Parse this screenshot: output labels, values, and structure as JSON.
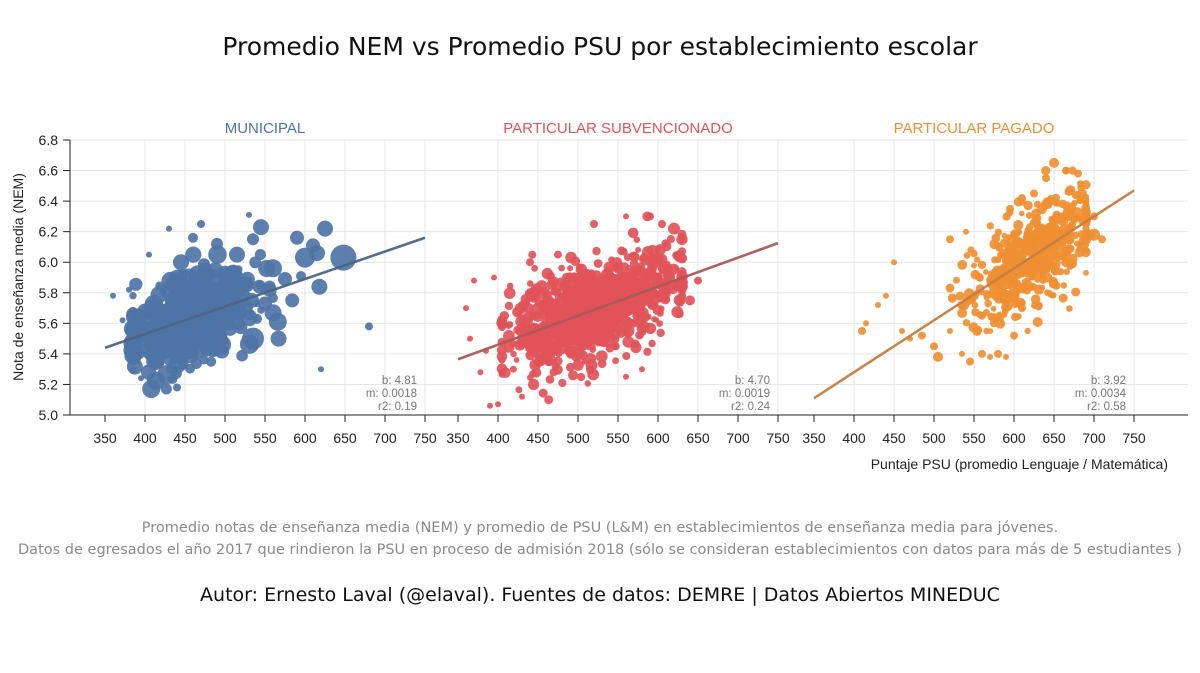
{
  "title": "Promedio NEM vs Promedio PSU por establecimiento escolar",
  "caption_line1": "Promedio notas de enseñanza media (NEM) y promedio de PSU (L&M) en establecimientos de enseñanza media para jóvenes.",
  "caption_line2": "Datos de egresados el año 2017 que rindieron la PSU en proceso de admisión 2018 (sólo se consideran establecimientos con datos para más de 5 estudiantes )",
  "author": "Autor: Ernesto Laval (@elaval).  Fuentes de datos: DEMRE | Datos Abiertos MINEDUC",
  "chart_data": {
    "type": "scatter",
    "ylabel": "Nota de enseñanza media (NEM)",
    "xlabel": "Puntaje PSU (promedio Lenguaje / Matemática)",
    "xlim": [
      350,
      750
    ],
    "ylim": [
      5.0,
      6.8
    ],
    "xticks": [
      "350",
      "400",
      "450",
      "500",
      "550",
      "600",
      "650",
      "700",
      "750"
    ],
    "yticks": [
      "5.0",
      "5.2",
      "5.4",
      "5.6",
      "5.8",
      "6.0",
      "6.2",
      "6.4",
      "6.6",
      "6.8"
    ],
    "grid": true,
    "panels": [
      {
        "name": "MUNICIPAL",
        "color": "#4e74a6",
        "line_color": "#4a6585",
        "stats": [
          "b: 4.81",
          "m: 0.0018",
          "r2: 0.19"
        ],
        "regression": {
          "b": 4.81,
          "m": 0.0018
        },
        "cloud": {
          "center": [
            450,
            5.66
          ],
          "spread": [
            40,
            0.16
          ],
          "xrange": [
            385,
            560
          ],
          "yrange": [
            5.17,
            6.05
          ],
          "count": 520
        },
        "points": [
          [
            535,
            5.5,
            11
          ],
          [
            567,
            5.5,
            8
          ],
          [
            566,
            5.61,
            9
          ],
          [
            584,
            5.75,
            7
          ],
          [
            600,
            6.03,
            10
          ],
          [
            615,
            6.06,
            8
          ],
          [
            648,
            6.03,
            13
          ],
          [
            625,
            6.22,
            8
          ],
          [
            618,
            5.84,
            8
          ],
          [
            535,
            6.15,
            6
          ],
          [
            515,
            6.05,
            8
          ],
          [
            490,
            6.12,
            6
          ],
          [
            460,
            6.16,
            5
          ],
          [
            470,
            6.25,
            4
          ],
          [
            530,
            6.31,
            3
          ],
          [
            545,
            6.23,
            8
          ],
          [
            590,
            6.16,
            7
          ],
          [
            610,
            6.11,
            7
          ],
          [
            680,
            5.58,
            4
          ],
          [
            620,
            5.3,
            3
          ],
          [
            575,
            5.89,
            7
          ],
          [
            560,
            5.96,
            9
          ],
          [
            595,
            5.91,
            5
          ],
          [
            500,
            5.87,
            8
          ],
          [
            475,
            5.95,
            7
          ],
          [
            530,
            5.66,
            6
          ],
          [
            550,
            5.73,
            7
          ],
          [
            505,
            5.7,
            6
          ],
          [
            520,
            5.81,
            6
          ],
          [
            540,
            5.63,
            5
          ],
          [
            360,
            5.78,
            3
          ],
          [
            372,
            5.62,
            3
          ],
          [
            380,
            5.82,
            3
          ],
          [
            430,
            6.22,
            3
          ],
          [
            405,
            6.05,
            3
          ],
          [
            440,
            5.18,
            4
          ],
          [
            395,
            5.24,
            3
          ],
          [
            445,
            6.0,
            8
          ],
          [
            455,
            5.9,
            9
          ],
          [
            480,
            5.6,
            7
          ]
        ]
      },
      {
        "name": "PARTICULAR SUBVENCIONADO",
        "color": "#e15459",
        "line_color": "#a8585a",
        "stats": [
          "b: 4.70",
          "m: 0.0019",
          "r2: 0.24"
        ],
        "regression": {
          "b": 4.7,
          "m": 0.0019
        },
        "cloud": {
          "center": [
            520,
            5.65
          ],
          "spread": [
            50,
            0.17
          ],
          "xrange": [
            405,
            630
          ],
          "yrange": [
            5.1,
            6.3
          ],
          "count": 1100
        },
        "points": [
          [
            360,
            5.7,
            3
          ],
          [
            365,
            5.5,
            3
          ],
          [
            385,
            5.42,
            3
          ],
          [
            390,
            5.06,
            3
          ],
          [
            400,
            5.07,
            3
          ],
          [
            430,
            5.12,
            3
          ],
          [
            440,
            6.0,
            4
          ],
          [
            395,
            5.9,
            3
          ],
          [
            378,
            5.28,
            3
          ],
          [
            590,
            6.3,
            4
          ],
          [
            605,
            6.25,
            4
          ],
          [
            620,
            6.22,
            6
          ],
          [
            640,
            5.75,
            5
          ],
          [
            650,
            5.88,
            4
          ],
          [
            560,
            5.25,
            3
          ],
          [
            580,
            5.3,
            3
          ],
          [
            475,
            6.05,
            4
          ],
          [
            520,
            6.25,
            4
          ],
          [
            560,
            6.3,
            3
          ],
          [
            370,
            5.88,
            3
          ]
        ]
      },
      {
        "name": "PARTICULAR PAGADO",
        "color": "#ef8f32",
        "line_color": "#c37f40",
        "stats": [
          "b: 3.92",
          "m: 0.0034",
          "r2: 0.58"
        ],
        "regression": {
          "b": 3.92,
          "m": 0.0034
        },
        "cloud": {
          "center": [
            625,
            6.08
          ],
          "spread": [
            40,
            0.19
          ],
          "xrange": [
            520,
            690
          ],
          "yrange": [
            5.55,
            6.6
          ],
          "count": 500
        },
        "points": [
          [
            410,
            5.55,
            4
          ],
          [
            415,
            5.6,
            3
          ],
          [
            430,
            5.72,
            3
          ],
          [
            440,
            5.78,
            3
          ],
          [
            450,
            6.0,
            3
          ],
          [
            460,
            5.55,
            3
          ],
          [
            470,
            5.5,
            3
          ],
          [
            485,
            5.52,
            4
          ],
          [
            500,
            5.45,
            4
          ],
          [
            505,
            5.38,
            5
          ],
          [
            535,
            5.4,
            3
          ],
          [
            545,
            5.35,
            4
          ],
          [
            560,
            5.4,
            4
          ],
          [
            570,
            5.38,
            3
          ],
          [
            580,
            5.4,
            4
          ],
          [
            600,
            5.52,
            4
          ],
          [
            590,
            5.38,
            3
          ],
          [
            650,
            6.65,
            5
          ],
          [
            640,
            6.55,
            4
          ],
          [
            680,
            6.58,
            4
          ],
          [
            665,
            6.6,
            4
          ],
          [
            700,
            6.18,
            6
          ],
          [
            710,
            6.15,
            4
          ],
          [
            695,
            6.18,
            5
          ],
          [
            700,
            6.3,
            4
          ],
          [
            660,
            6.05,
            5
          ],
          [
            665,
            6.0,
            5
          ],
          [
            595,
            6.35,
            4
          ],
          [
            610,
            6.42,
            4
          ],
          [
            625,
            6.45,
            4
          ],
          [
            520,
            6.15,
            4
          ],
          [
            540,
            6.2,
            3
          ],
          [
            560,
            5.65,
            4
          ],
          [
            575,
            5.6,
            4
          ],
          [
            610,
            5.7,
            4
          ]
        ]
      }
    ]
  }
}
